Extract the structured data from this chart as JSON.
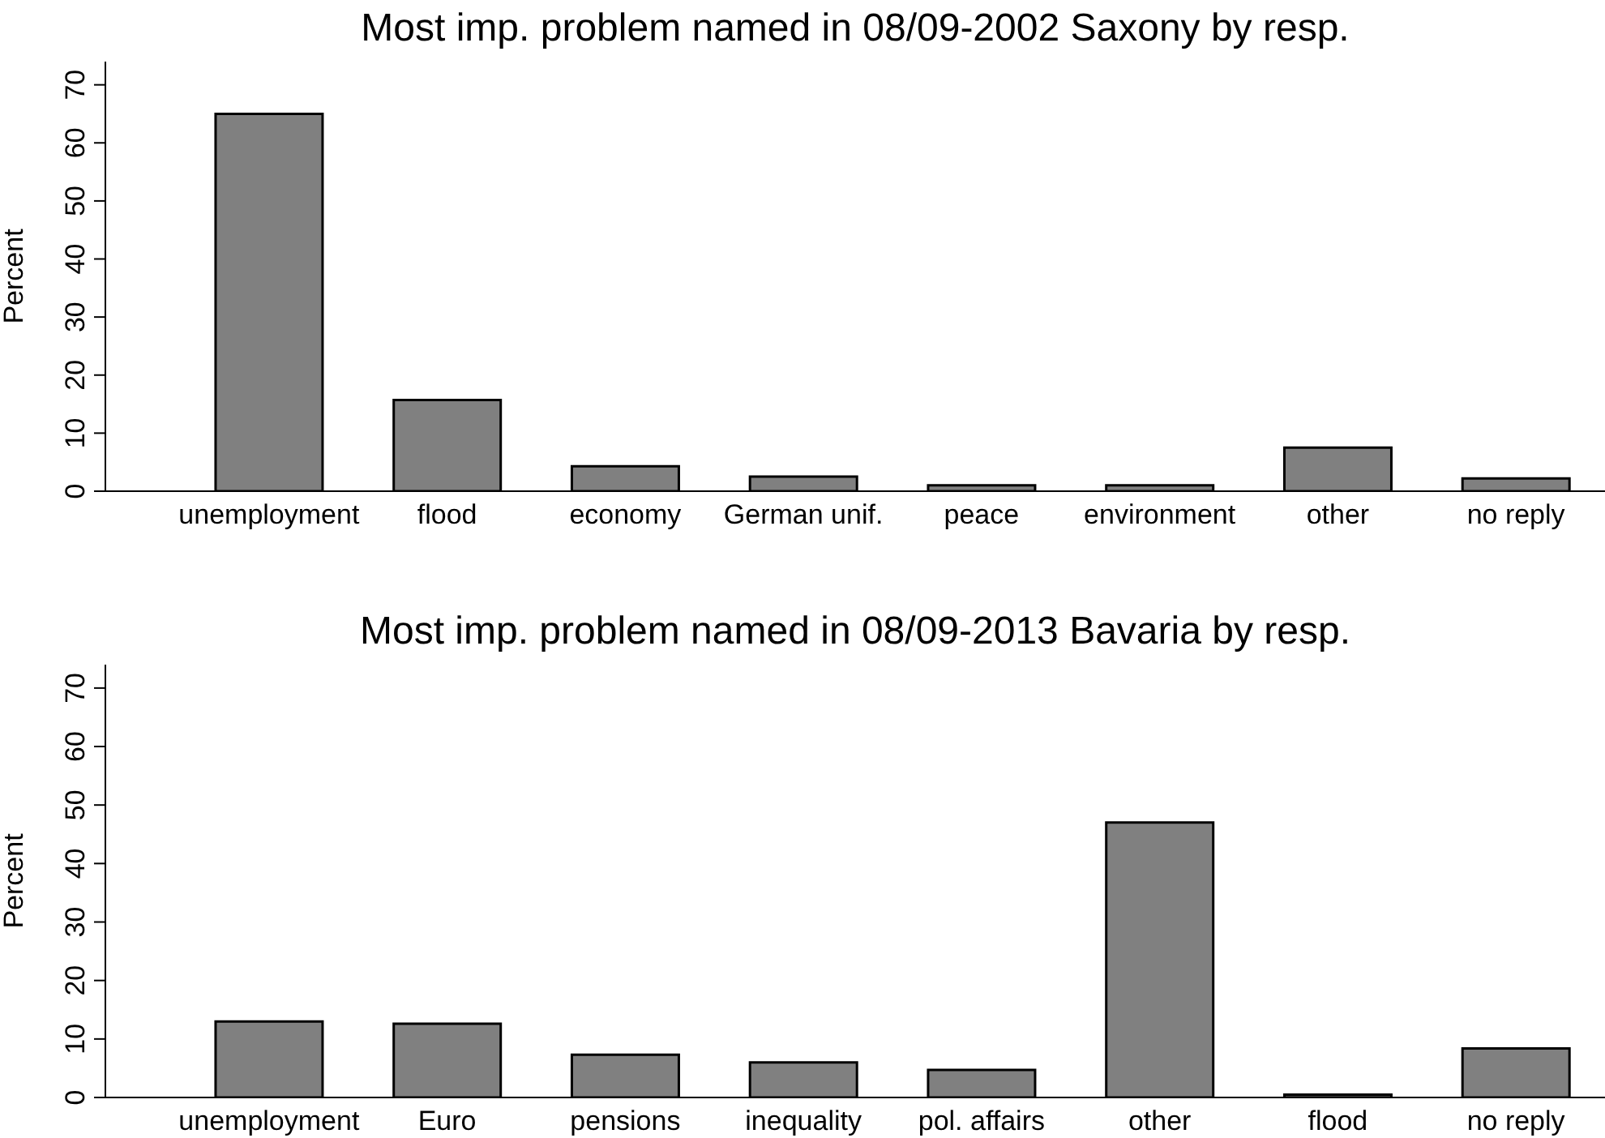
{
  "chart_data": [
    {
      "type": "bar",
      "title": "Most imp. problem named in 08/09-2002 Saxony by resp.",
      "ylabel": "Percent",
      "categories": [
        "unemployment",
        "flood",
        "economy",
        "German unif.",
        "peace",
        "environment",
        "other",
        "no reply"
      ],
      "values": [
        65,
        15.7,
        4.3,
        2.5,
        1,
        1,
        7.5,
        2.2
      ],
      "color": "#808080",
      "ylim": [
        0,
        74
      ],
      "yticks": [
        0,
        10,
        20,
        30,
        40,
        50,
        60,
        70
      ],
      "grid": false,
      "legend": false
    },
    {
      "type": "bar",
      "title": "Most imp. problem named in 08/09-2013 Bavaria by resp.",
      "ylabel": "Percent",
      "categories": [
        "unemployment",
        "Euro",
        "pensions",
        "inequality",
        "pol. affairs",
        "other",
        "flood",
        "no reply"
      ],
      "values": [
        13,
        12.6,
        7.3,
        6,
        4.7,
        47,
        0.5,
        8.4
      ],
      "color": "#808080",
      "ylim": [
        0,
        74
      ],
      "yticks": [
        0,
        10,
        20,
        30,
        40,
        50,
        60,
        70
      ],
      "grid": false,
      "legend": false
    }
  ]
}
